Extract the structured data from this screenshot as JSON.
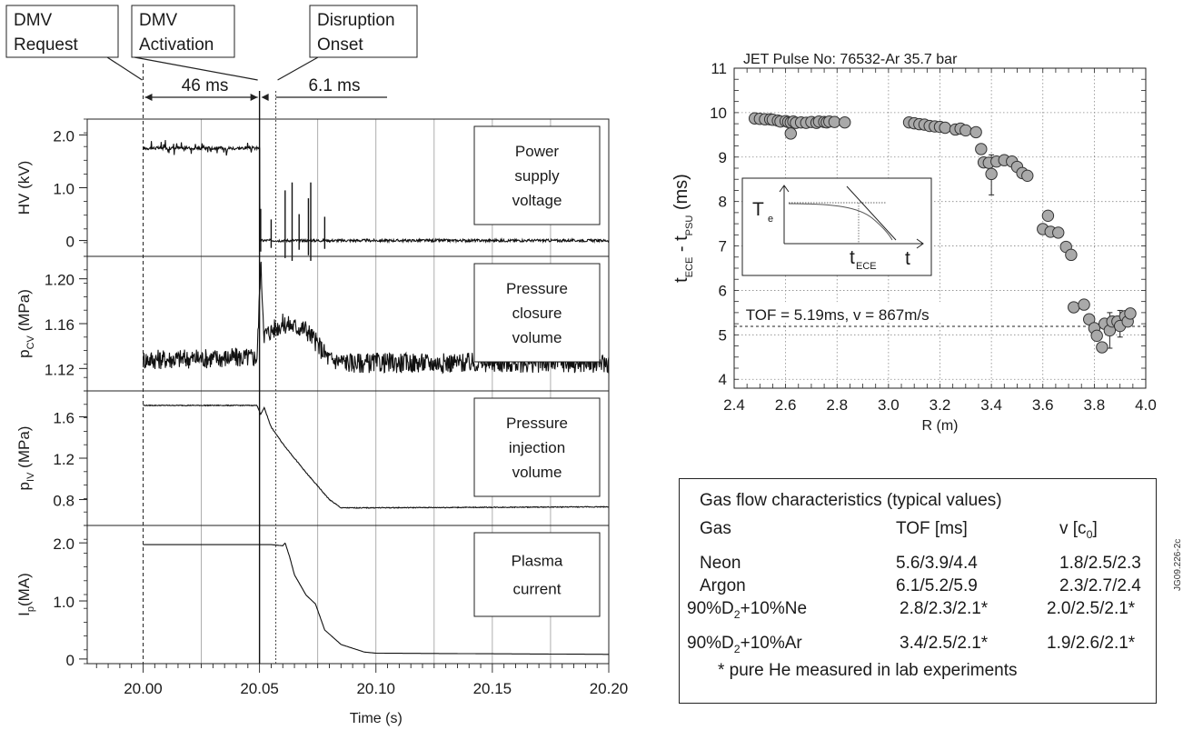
{
  "callouts": {
    "dmv_request": [
      "DMV",
      "Request"
    ],
    "dmv_activation": [
      "DMV",
      "Activation"
    ],
    "disruption_onset": [
      "Disruption",
      "Onset"
    ],
    "interval_1": "46 ms",
    "interval_2": "6.1 ms"
  },
  "left": {
    "xlabel": "Time (s)",
    "x_ticks": [
      "20.00",
      "20.05",
      "20.10",
      "20.15",
      "20.20"
    ],
    "xlim": [
      19.976,
      20.2
    ],
    "event_times": {
      "request": 20.0,
      "activation": 20.05,
      "onset": 20.057
    }
  },
  "chart_data": [
    {
      "type": "line",
      "panel": "HV",
      "ylabel_main": "HV (kV)",
      "box": [
        "Power",
        "supply",
        "voltage"
      ],
      "y_ticks": [
        "2.0",
        "1.0",
        "0"
      ],
      "ylim": [
        -0.3,
        2.3
      ],
      "series": [
        {
          "x": [
            20.0,
            20.05,
            20.0502,
            20.06,
            20.07,
            20.09,
            20.2
          ],
          "values": [
            1.75,
            1.75,
            0.0,
            0.0,
            0.0,
            0.0,
            0.0
          ]
        }
      ],
      "spikes": [
        [
          20.0505,
          0.6
        ],
        [
          20.055,
          0.4
        ],
        [
          20.061,
          0.95
        ],
        [
          20.064,
          1.1
        ],
        [
          20.067,
          0.5
        ],
        [
          20.071,
          0.8
        ],
        [
          20.072,
          1.1
        ],
        [
          20.078,
          0.45
        ]
      ]
    },
    {
      "type": "line",
      "panel": "pCV",
      "ylabel_main": "p",
      "ylabel_sub": "CV",
      "ylabel_unit": " (MPa)",
      "box": [
        "Pressure",
        "closure",
        "volume"
      ],
      "y_ticks": [
        "1.20",
        "1.16",
        "1.12"
      ],
      "ylim": [
        1.1,
        1.22
      ],
      "series": [
        {
          "x": [
            20.0,
            20.049,
            20.0505,
            20.052,
            20.06,
            20.07,
            20.08,
            20.09,
            20.2
          ],
          "values": [
            1.128,
            1.13,
            1.215,
            1.15,
            1.16,
            1.155,
            1.128,
            1.125,
            1.125
          ]
        }
      ]
    },
    {
      "type": "line",
      "panel": "pIV",
      "ylabel_main": "p",
      "ylabel_sub": "IV",
      "ylabel_unit": " (MPa)",
      "box": [
        "Pressure",
        "injection",
        "volume"
      ],
      "y_ticks": [
        "1.6",
        "1.2",
        "0.8"
      ],
      "ylim": [
        0.55,
        1.85
      ],
      "series": [
        {
          "x": [
            20.0,
            20.049,
            20.0505,
            20.052,
            20.055,
            20.06,
            20.07,
            20.08,
            20.085,
            20.09,
            20.2
          ],
          "values": [
            1.71,
            1.71,
            1.62,
            1.69,
            1.5,
            1.34,
            1.06,
            0.8,
            0.72,
            0.72,
            0.73
          ]
        }
      ]
    },
    {
      "type": "line",
      "panel": "Ip",
      "ylabel_main": "I",
      "ylabel_sub": "p",
      "ylabel_unit": "(MA)",
      "box": [
        "Plasma",
        "current"
      ],
      "y_ticks": [
        "2.0",
        "1.0",
        "0"
      ],
      "ylim": [
        -0.08,
        2.3
      ],
      "series": [
        {
          "x": [
            20.0,
            20.055,
            20.06,
            20.061,
            20.063,
            20.065,
            20.07,
            20.074,
            20.078,
            20.085,
            20.095,
            20.1,
            20.2
          ],
          "values": [
            1.97,
            1.97,
            1.95,
            2.0,
            1.75,
            1.45,
            1.1,
            0.95,
            0.5,
            0.25,
            0.12,
            0.1,
            0.08
          ]
        }
      ]
    },
    {
      "type": "scatter",
      "title": "JET Pulse No: 76532-Ar 35.7 bar",
      "xlabel": "R (m)",
      "ylabel": "t",
      "ylabel_sub1": "ECE",
      "ylabel_mid": " - t",
      "ylabel_sub2": "PSU",
      "ylabel_unit": " (ms)",
      "xlim": [
        2.4,
        4.0
      ],
      "ylim": [
        3.8,
        11.0
      ],
      "x_ticks": [
        "2.4",
        "2.6",
        "2.8",
        "3.0",
        "3.2",
        "3.4",
        "3.6",
        "3.8",
        "4.0"
      ],
      "y_ticks": [
        "4",
        "5",
        "6",
        "7",
        "8",
        "9",
        "10",
        "11"
      ],
      "grid": true,
      "fit_label": "TOF = 5.19ms, v = 867m/s",
      "fit_y": 5.19,
      "points": [
        [
          2.48,
          9.87
        ],
        [
          2.5,
          9.86
        ],
        [
          2.52,
          9.85
        ],
        [
          2.54,
          9.85
        ],
        [
          2.55,
          9.84
        ],
        [
          2.57,
          9.82
        ],
        [
          2.58,
          9.8
        ],
        [
          2.6,
          9.81
        ],
        [
          2.61,
          9.79
        ],
        [
          2.62,
          9.78
        ],
        [
          2.63,
          9.8
        ],
        [
          2.64,
          9.77
        ],
        [
          2.66,
          9.78
        ],
        [
          2.68,
          9.77
        ],
        [
          2.7,
          9.79
        ],
        [
          2.72,
          9.77
        ],
        [
          2.73,
          9.8
        ],
        [
          2.75,
          9.79
        ],
        [
          2.76,
          9.78
        ],
        [
          2.77,
          9.8
        ],
        [
          2.79,
          9.79
        ],
        [
          2.83,
          9.78
        ],
        [
          2.62,
          9.53
        ],
        [
          3.08,
          9.78
        ],
        [
          3.1,
          9.76
        ],
        [
          3.12,
          9.74
        ],
        [
          3.14,
          9.73
        ],
        [
          3.16,
          9.7
        ],
        [
          3.18,
          9.69
        ],
        [
          3.2,
          9.68
        ],
        [
          3.22,
          9.66
        ],
        [
          3.26,
          9.62
        ],
        [
          3.28,
          9.64
        ],
        [
          3.3,
          9.6
        ],
        [
          3.34,
          9.56
        ],
        [
          3.36,
          9.18
        ],
        [
          3.37,
          8.88
        ],
        [
          3.39,
          8.87
        ],
        [
          3.4,
          8.62
        ],
        [
          3.42,
          8.9
        ],
        [
          3.45,
          8.93
        ],
        [
          3.48,
          8.9
        ],
        [
          3.5,
          8.78
        ],
        [
          3.52,
          8.64
        ],
        [
          3.54,
          8.58
        ],
        [
          3.6,
          7.38
        ],
        [
          3.62,
          7.68
        ],
        [
          3.63,
          7.32
        ],
        [
          3.66,
          7.3
        ],
        [
          3.69,
          6.98
        ],
        [
          3.71,
          6.8
        ],
        [
          3.72,
          5.62
        ],
        [
          3.76,
          5.68
        ],
        [
          3.78,
          5.35
        ],
        [
          3.8,
          5.15
        ],
        [
          3.81,
          4.98
        ],
        [
          3.83,
          4.72
        ],
        [
          3.84,
          5.25
        ],
        [
          3.86,
          5.1
        ],
        [
          3.87,
          5.3
        ],
        [
          3.89,
          5.3
        ],
        [
          3.9,
          5.2
        ],
        [
          3.92,
          5.42
        ],
        [
          3.93,
          5.3
        ],
        [
          3.94,
          5.48
        ]
      ],
      "error_bars": [
        [
          3.4,
          8.15,
          9.05
        ],
        [
          3.86,
          4.7,
          5.5
        ],
        [
          3.9,
          4.95,
          5.55
        ]
      ],
      "inset": {
        "ylabel": "T",
        "ylabel_sub": "e",
        "xlabel": "t",
        "marker": "t",
        "marker_sub": "ECE"
      }
    }
  ],
  "table": {
    "title": "Gas flow characteristics (typical values)",
    "headers": [
      "Gas",
      "TOF  [ms]",
      "v  [c"
    ],
    "header_sub": "0",
    "header_close": "]",
    "rows": [
      [
        "Neon",
        "5.6/3.9/4.4",
        "1.8/2.5/2.3"
      ],
      [
        "Argon",
        "6.1/5.2/5.9",
        "2.3/2.7/2.4"
      ]
    ],
    "mix_rows": [
      {
        "pre": "90%D",
        "sub": "2",
        "post": "+10%Ne",
        "tof": "2.8/2.3/2.1*",
        "v": "2.0/2.5/2.1*"
      },
      {
        "pre": "90%D",
        "sub": "2",
        "post": "+10%Ar",
        "tof": "3.4/2.5/2.1*",
        "v": "1.9/2.6/2.1*"
      }
    ],
    "footnote": "* pure He measured in lab experiments"
  },
  "figure_tag": "JG09.226-2c"
}
